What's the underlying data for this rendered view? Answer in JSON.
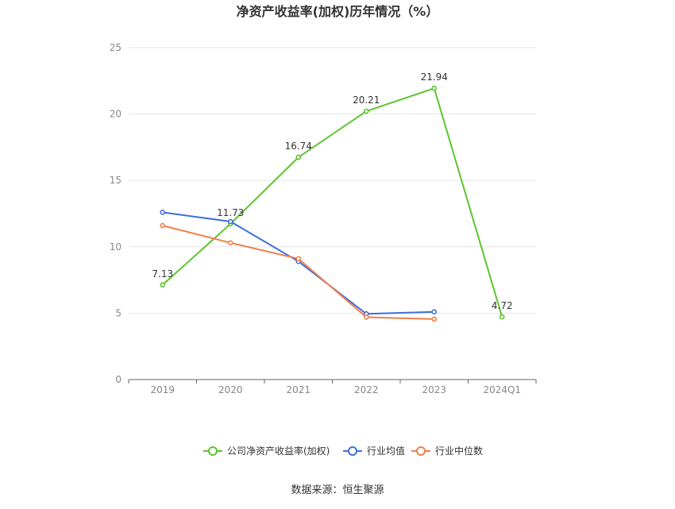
{
  "chart_data": {
    "type": "line",
    "title": "净资产收益率(加权)历年情况（%）",
    "categories": [
      "2019",
      "2020",
      "2021",
      "2022",
      "2023",
      "2024Q1"
    ],
    "ylim": [
      0,
      25
    ],
    "yticks": [
      0,
      5,
      10,
      15,
      20,
      25
    ],
    "grid": true,
    "legend_position": "bottom",
    "series": [
      {
        "name": "公司净资产收益率(加权)",
        "color": "#5cc52e",
        "values": [
          7.13,
          11.73,
          16.74,
          20.21,
          21.94,
          4.72
        ],
        "labels": [
          "7.13",
          "11.73",
          "16.74",
          "20.21",
          "21.94",
          "4.72"
        ]
      },
      {
        "name": "行业均值",
        "color": "#3c6fdc",
        "values": [
          12.6,
          11.9,
          8.9,
          4.95,
          5.1,
          null
        ]
      },
      {
        "name": "行业中位数",
        "color": "#f07f4e",
        "values": [
          11.6,
          10.3,
          9.1,
          4.7,
          4.55,
          null
        ]
      }
    ]
  },
  "source": "数据来源：恒生聚源"
}
